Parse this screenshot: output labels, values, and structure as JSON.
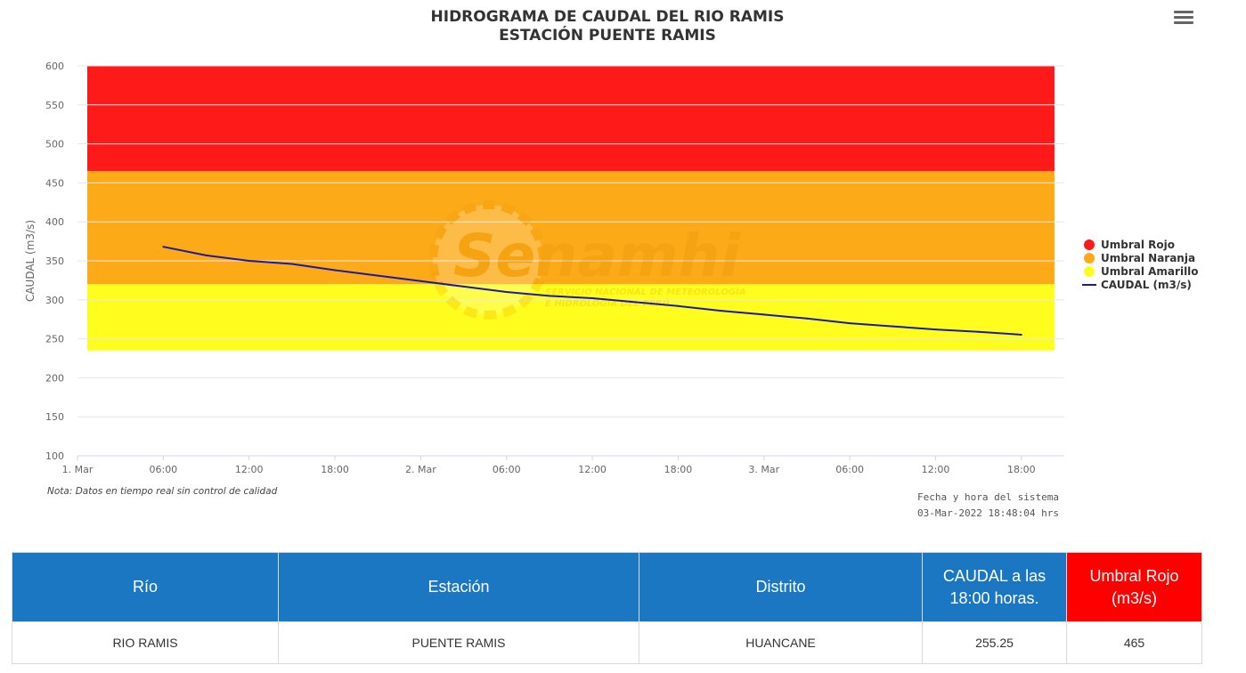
{
  "chart_data": {
    "type": "line",
    "title": "HIDROGRAMA DE CAUDAL DEL RIO RAMIS",
    "subtitle": "ESTACIÓN PUENTE RAMIS",
    "ylabel": "CAUDAL (m3/s)",
    "xlabel": "",
    "ylim": [
      100,
      600
    ],
    "yticks": [
      100,
      150,
      200,
      250,
      300,
      350,
      400,
      450,
      500,
      550,
      600
    ],
    "xlim": [
      "2022-03-01 00:00",
      "2022-03-03 21:00"
    ],
    "xticks": [
      {
        "time": "2022-03-01 00:00",
        "label": "1. Mar"
      },
      {
        "time": "2022-03-01 06:00",
        "label": "06:00"
      },
      {
        "time": "2022-03-01 12:00",
        "label": "12:00"
      },
      {
        "time": "2022-03-01 18:00",
        "label": "18:00"
      },
      {
        "time": "2022-03-02 00:00",
        "label": "2. Mar"
      },
      {
        "time": "2022-03-02 06:00",
        "label": "06:00"
      },
      {
        "time": "2022-03-02 12:00",
        "label": "12:00"
      },
      {
        "time": "2022-03-02 18:00",
        "label": "18:00"
      },
      {
        "time": "2022-03-03 00:00",
        "label": "3. Mar"
      },
      {
        "time": "2022-03-03 06:00",
        "label": "06:00"
      },
      {
        "time": "2022-03-03 12:00",
        "label": "12:00"
      },
      {
        "time": "2022-03-03 18:00",
        "label": "18:00"
      }
    ],
    "bands": [
      {
        "name": "Umbral Rojo",
        "from": 465,
        "to": 600,
        "color": "#ff1a1a"
      },
      {
        "name": "Umbral Naranja",
        "from": 320,
        "to": 465,
        "color": "#fdaa19"
      },
      {
        "name": "Umbral Amarillo",
        "from": 235,
        "to": 320,
        "color": "#fffd1e"
      }
    ],
    "series": [
      {
        "name": "CAUDAL (m3/s)",
        "color": "#1a1aa6",
        "points": [
          [
            "2022-03-01 06:00",
            368
          ],
          [
            "2022-03-01 09:00",
            357
          ],
          [
            "2022-03-01 12:00",
            350
          ],
          [
            "2022-03-01 15:00",
            346
          ],
          [
            "2022-03-01 18:00",
            338
          ],
          [
            "2022-03-01 21:00",
            331
          ],
          [
            "2022-03-02 00:00",
            324
          ],
          [
            "2022-03-02 03:00",
            317
          ],
          [
            "2022-03-02 06:00",
            310
          ],
          [
            "2022-03-02 09:00",
            305
          ],
          [
            "2022-03-02 12:00",
            302
          ],
          [
            "2022-03-02 15:00",
            297
          ],
          [
            "2022-03-02 18:00",
            292
          ],
          [
            "2022-03-02 21:00",
            286
          ],
          [
            "2022-03-03 00:00",
            281
          ],
          [
            "2022-03-03 03:00",
            276
          ],
          [
            "2022-03-03 06:00",
            270
          ],
          [
            "2022-03-03 09:00",
            266
          ],
          [
            "2022-03-03 12:00",
            262
          ],
          [
            "2022-03-03 15:00",
            259
          ],
          [
            "2022-03-03 18:00",
            255.25
          ]
        ]
      }
    ],
    "legend_position": "right",
    "legend": [
      {
        "label": "Umbral Rojo",
        "color": "#ff1a1a",
        "symbol": "circle"
      },
      {
        "label": "Umbral Naranja",
        "color": "#fdaa19",
        "symbol": "circle"
      },
      {
        "label": "Umbral Amarillo",
        "color": "#fffd1e",
        "symbol": "circle"
      },
      {
        "label": "CAUDAL (m3/s)",
        "color": "#1a1aa6",
        "symbol": "line"
      }
    ],
    "grid": true,
    "watermark": {
      "text": "Senamhi",
      "line1": "SERVICIO NACIONAL DE METEOROLOGÍA",
      "line2": "E HIDROLOGÍA DEL PERÚ"
    }
  },
  "note": "Nota: Datos en tiempo real sin control de calidad",
  "system_time": {
    "label": "Fecha y hora del sistema",
    "value": "03-Mar-2022 18:48:04 hrs"
  },
  "table": {
    "headers": [
      {
        "line1": "Río",
        "line2": ""
      },
      {
        "line1": "Estación",
        "line2": ""
      },
      {
        "line1": "Distrito",
        "line2": ""
      },
      {
        "line1": "CAUDAL a las",
        "line2": "18:00 horas."
      },
      {
        "line1": "Umbral Rojo",
        "line2": "(m3/s)"
      }
    ],
    "row": [
      "RIO RAMIS",
      "PUENTE RAMIS",
      "HUANCANE",
      "255.25",
      "465"
    ]
  }
}
